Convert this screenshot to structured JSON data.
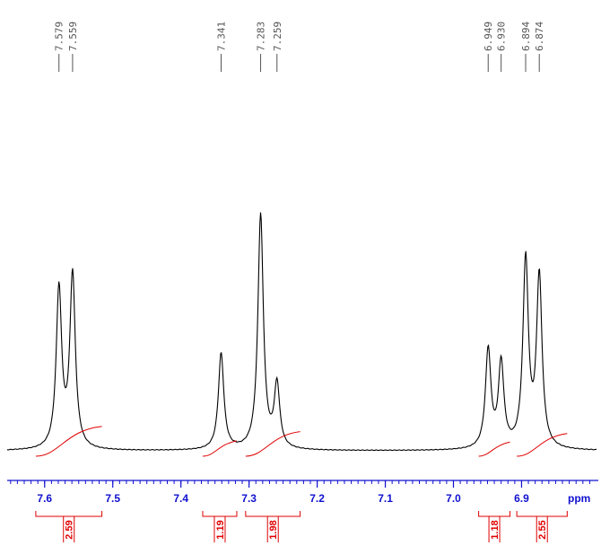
{
  "chart_data": {
    "type": "line",
    "xlabel": "ppm",
    "xlim": [
      7.655,
      6.79
    ],
    "x_reversed": true,
    "xticks": [
      "7.6",
      "7.5",
      "7.4",
      "7.3",
      "7.2",
      "7.1",
      "7.0",
      "6.9"
    ],
    "peak_labels": [
      "7.579",
      "7.559",
      "7.341",
      "7.283",
      "7.259",
      "6.949",
      "6.930",
      "6.894",
      "6.874"
    ],
    "series": [
      {
        "values_description": "1H NMR spectrum intensity (relative)",
        "peaks": [
          {
            "x": 7.579,
            "height": 0.68
          },
          {
            "x": 7.559,
            "height": 0.74
          },
          {
            "x": 7.341,
            "height": 0.41
          },
          {
            "x": 7.283,
            "height": 1.0
          },
          {
            "x": 7.259,
            "height": 0.27
          },
          {
            "x": 6.949,
            "height": 0.42
          },
          {
            "x": 6.93,
            "height": 0.36
          },
          {
            "x": 6.894,
            "height": 0.8
          },
          {
            "x": 6.874,
            "height": 0.73
          }
        ]
      }
    ],
    "integrals": [
      {
        "value": "2.59",
        "from": 7.613,
        "to": 7.516
      },
      {
        "value": "1.19",
        "from": 7.368,
        "to": 7.318
      },
      {
        "value": "1.98",
        "from": 7.305,
        "to": 7.225
      },
      {
        "value": "1.18",
        "from": 6.963,
        "to": 6.917
      },
      {
        "value": "2.55",
        "from": 6.907,
        "to": 6.833
      }
    ],
    "colors": {
      "spectrum": "#000000",
      "axis": "#1010d0",
      "integral": "#e00000",
      "peak_label": "#555555"
    }
  }
}
